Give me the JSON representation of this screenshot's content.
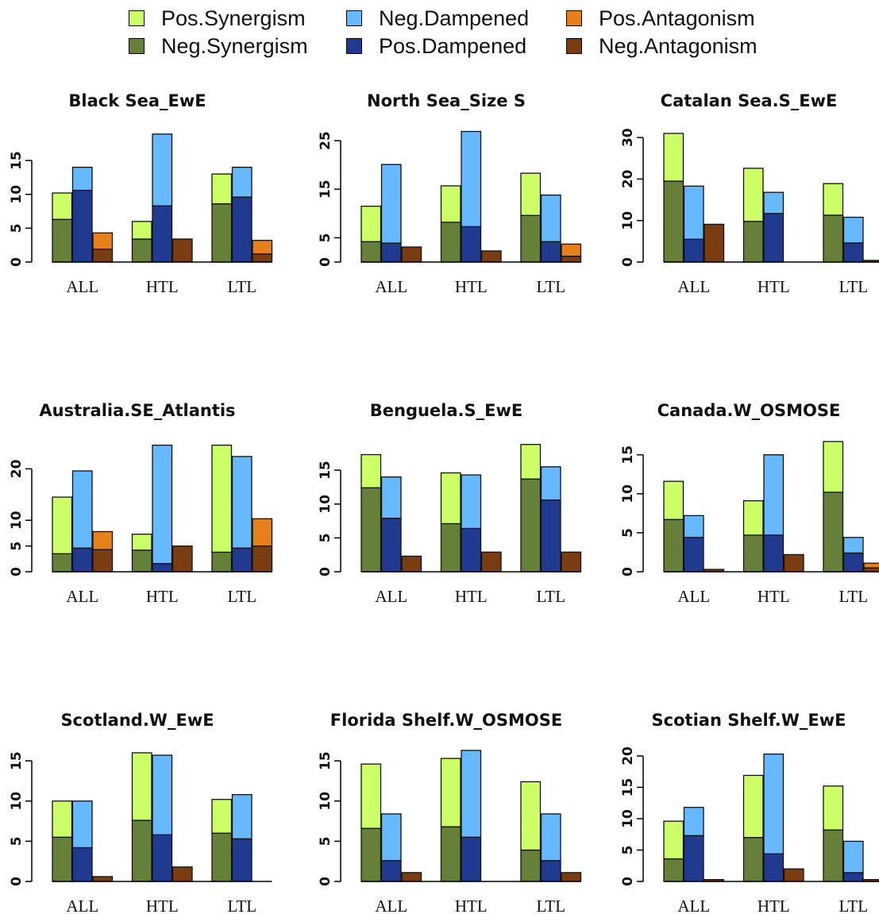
{
  "legend": {
    "items": [
      {
        "label": "Pos.Synergism",
        "color": "#ccff66"
      },
      {
        "label": "Neg.Dampened",
        "color": "#66b8ff"
      },
      {
        "label": "Pos.Antagonism",
        "color": "#e6801a"
      },
      {
        "label": "Neg.Synergism",
        "color": "#66803a"
      },
      {
        "label": "Pos.Dampened",
        "color": "#1f3a8f"
      },
      {
        "label": "Neg.Antagonism",
        "color": "#7a3d12"
      }
    ]
  },
  "chart_data": [
    {
      "type": "bar",
      "title": "Black Sea_EwE",
      "categories": [
        "ALL",
        "HTL",
        "LTL"
      ],
      "yticks": [
        0,
        5,
        10,
        15
      ],
      "ylim": [
        0,
        19
      ],
      "stacks": [
        [
          {
            "series": "Neg.Synergism",
            "value": 6.3
          },
          {
            "series": "Pos.Synergism",
            "value": 3.9
          }
        ],
        [
          {
            "series": "Pos.Dampened",
            "value": 10.6
          },
          {
            "series": "Neg.Dampened",
            "value": 3.4
          }
        ],
        [
          {
            "series": "Neg.Antagonism",
            "value": 1.9
          },
          {
            "series": "Pos.Antagonism",
            "value": 2.4
          }
        ],
        [
          {
            "series": "Neg.Synergism",
            "value": 3.4
          },
          {
            "series": "Pos.Synergism",
            "value": 2.6
          }
        ],
        [
          {
            "series": "Pos.Dampened",
            "value": 8.3
          },
          {
            "series": "Neg.Dampened",
            "value": 10.6
          }
        ],
        [
          {
            "series": "Neg.Antagonism",
            "value": 3.4
          },
          {
            "series": "Pos.Antagonism",
            "value": 0
          }
        ],
        [
          {
            "series": "Neg.Synergism",
            "value": 8.6
          },
          {
            "series": "Pos.Synergism",
            "value": 4.4
          }
        ],
        [
          {
            "series": "Pos.Dampened",
            "value": 9.6
          },
          {
            "series": "Neg.Dampened",
            "value": 4.4
          }
        ],
        [
          {
            "series": "Neg.Antagonism",
            "value": 1.2
          },
          {
            "series": "Pos.Antagonism",
            "value": 2.0
          }
        ]
      ]
    },
    {
      "type": "bar",
      "title": "North Sea_Size S",
      "categories": [
        "ALL",
        "HTL",
        "LTL"
      ],
      "yticks": [
        0,
        5,
        15,
        25
      ],
      "ylim": [
        0,
        26.5
      ],
      "stacks": [
        [
          {
            "series": "Neg.Synergism",
            "value": 4.2
          },
          {
            "series": "Pos.Synergism",
            "value": 7.3
          }
        ],
        [
          {
            "series": "Pos.Dampened",
            "value": 3.9
          },
          {
            "series": "Neg.Dampened",
            "value": 16.2
          }
        ],
        [
          {
            "series": "Neg.Antagonism",
            "value": 3.1
          },
          {
            "series": "Pos.Antagonism",
            "value": 0
          }
        ],
        [
          {
            "series": "Neg.Synergism",
            "value": 8.2
          },
          {
            "series": "Pos.Synergism",
            "value": 7.5
          }
        ],
        [
          {
            "series": "Pos.Dampened",
            "value": 7.3
          },
          {
            "series": "Neg.Dampened",
            "value": 19.6
          }
        ],
        [
          {
            "series": "Neg.Antagonism",
            "value": 2.3
          },
          {
            "series": "Pos.Antagonism",
            "value": 0
          }
        ],
        [
          {
            "series": "Neg.Synergism",
            "value": 9.6
          },
          {
            "series": "Pos.Synergism",
            "value": 8.7
          }
        ],
        [
          {
            "series": "Pos.Dampened",
            "value": 4.2
          },
          {
            "series": "Neg.Dampened",
            "value": 9.6
          }
        ],
        [
          {
            "series": "Neg.Antagonism",
            "value": 1.2
          },
          {
            "series": "Pos.Antagonism",
            "value": 2.5
          }
        ]
      ]
    },
    {
      "type": "bar",
      "title": "Catalan Sea.S_EwE",
      "categories": [
        "ALL",
        "HTL",
        "LTL"
      ],
      "yticks": [
        0,
        10,
        20,
        30
      ],
      "ylim": [
        0,
        31
      ]
    },
    {
      "type": "bar",
      "title": "Australia.SE_Atlantis",
      "categories": [
        "ALL",
        "HTL",
        "LTL"
      ],
      "yticks": [
        0,
        5,
        10,
        20
      ],
      "ylim": [
        0,
        25
      ]
    },
    {
      "type": "bar",
      "title": "Benguela.S_EwE",
      "categories": [
        "ALL",
        "HTL",
        "LTL"
      ],
      "yticks": [
        0,
        5,
        10,
        15
      ],
      "ylim": [
        0,
        19
      ]
    },
    {
      "type": "bar",
      "title": "Canada.W_OSMOSE",
      "categories": [
        "ALL",
        "HTL",
        "LTL"
      ],
      "yticks": [
        0,
        5,
        10,
        15
      ],
      "ylim": [
        0,
        16.5
      ]
    },
    {
      "type": "bar",
      "title": "Scotland.W_EwE",
      "categories": [
        "ALL",
        "HTL",
        "LTL"
      ],
      "yticks": [
        0,
        5,
        10,
        15
      ],
      "ylim": [
        0,
        16
      ]
    },
    {
      "type": "bar",
      "title": "Florida Shelf.W_OSMOSE",
      "categories": [
        "ALL",
        "HTL",
        "LTL"
      ],
      "yticks": [
        0,
        5,
        10,
        15
      ],
      "ylim": [
        0,
        16
      ]
    },
    {
      "type": "bar",
      "title": "Scotian Shelf.W_EwE",
      "categories": [
        "ALL",
        "HTL",
        "LTL"
      ],
      "yticks": [
        0,
        5,
        10,
        15,
        20
      ],
      "ylim": [
        0,
        20.5
      ]
    }
  ]
}
